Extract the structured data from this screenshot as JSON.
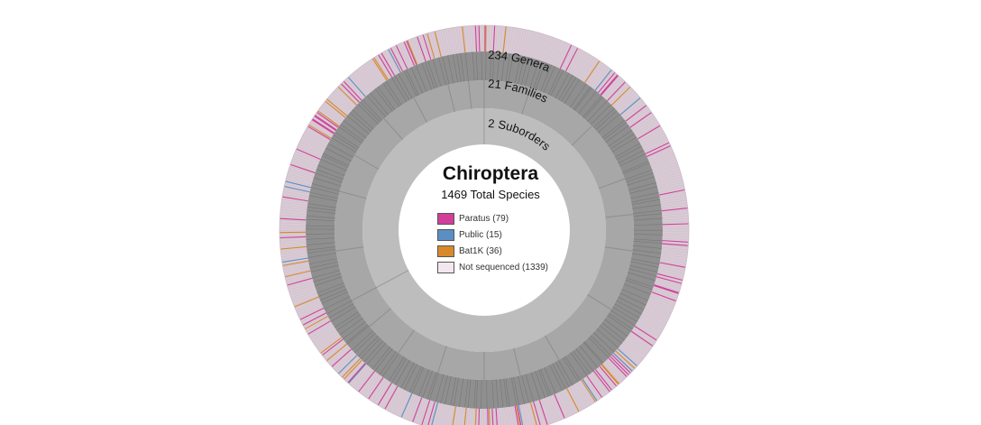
{
  "title": "Chiroptera",
  "subtitle": "1469 Total Species",
  "rings": [
    {
      "label": "2 Suborders"
    },
    {
      "label": "21 Families"
    },
    {
      "label": "234 Genera"
    }
  ],
  "legend": [
    {
      "label": "Paratus (79)",
      "color": "#d23f9a",
      "count": 79
    },
    {
      "label": "Public (15)",
      "color": "#5b8fc4",
      "count": 15
    },
    {
      "label": "Bat1K (36)",
      "color": "#d8892c",
      "count": 36
    },
    {
      "label": "Not sequenced (1339)",
      "color": "#f2e6ef",
      "count": 1339
    }
  ],
  "colors": {
    "suborder_ring": "#bdbdbd",
    "family_ring": "#a7a7a7",
    "genus_ring": "#8f8f8f",
    "species_ring": "#d9cbd5",
    "divider": "#9a9a9a"
  }
}
